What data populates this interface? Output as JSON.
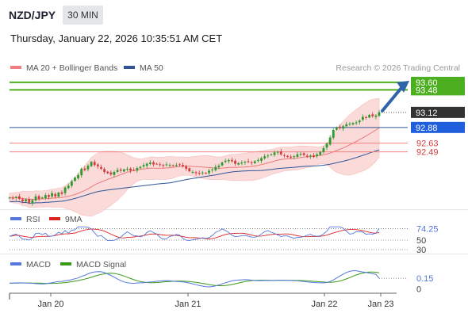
{
  "header": {
    "symbol": "NZD/JPY",
    "timeframe": "30 MIN",
    "datetime": "Thursday, January 22, 2026 10:35:51 AM CET",
    "credit": "Research © 2026 Trading Central"
  },
  "legend": {
    "main": [
      {
        "label": "MA 20 + Bollinger Bands",
        "color": "#f08080"
      },
      {
        "label": "MA 50",
        "color": "#2f5597"
      }
    ],
    "rsi": [
      {
        "label": "RSI",
        "color": "#5577dd"
      },
      {
        "label": "9MA",
        "color": "#dd2222"
      }
    ],
    "macd": [
      {
        "label": "MACD",
        "color": "#5577dd"
      },
      {
        "label": "MACD Signal",
        "color": "#3a9a1a"
      }
    ]
  },
  "colors": {
    "up": "#2e9a2e",
    "down": "#d43c3c",
    "bollinger_fill": "#fbdada",
    "target_line": "#4caf20",
    "resistance_line": "#2f5597",
    "support_line": "#f08080",
    "current_price_bg": "#333333",
    "arrow": "#2f65a8"
  },
  "chart_data": [
    {
      "type": "candlestick",
      "title": "NZD/JPY",
      "x_labels": [
        "Jan 20",
        "Jan 21",
        "Jan 22",
        "Jan 23"
      ],
      "ylim": [
        91.6,
        93.7
      ],
      "close": [
        91.76,
        91.75,
        91.77,
        91.74,
        91.7,
        91.73,
        91.68,
        91.72,
        91.78,
        91.74,
        91.76,
        91.8,
        91.77,
        91.83,
        91.78,
        91.84,
        91.82,
        91.92,
        91.95,
        92.02,
        92.08,
        92.12,
        92.22,
        92.2,
        92.27,
        92.33,
        92.28,
        92.26,
        92.22,
        92.17,
        92.15,
        92.13,
        92.17,
        92.2,
        92.19,
        92.21,
        92.22,
        92.19,
        92.2,
        92.23,
        92.25,
        92.28,
        92.3,
        92.32,
        92.29,
        92.3,
        92.28,
        92.27,
        92.29,
        92.28,
        92.27,
        92.28,
        92.29,
        92.26,
        92.22,
        92.18,
        92.17,
        92.15,
        92.14,
        92.16,
        92.15,
        92.19,
        92.21,
        92.25,
        92.27,
        92.32,
        92.35,
        92.36,
        92.34,
        92.3,
        92.31,
        92.32,
        92.33,
        92.33,
        92.31,
        92.34,
        92.36,
        92.39,
        92.42,
        92.43,
        92.45,
        92.48,
        92.49,
        92.45,
        92.43,
        92.41,
        92.4,
        92.42,
        92.45,
        92.46,
        92.44,
        92.42,
        92.43,
        92.41,
        92.45,
        92.49,
        92.55,
        92.62,
        92.72,
        92.84,
        92.88,
        92.87,
        92.9,
        92.93,
        92.94,
        92.95,
        92.96,
        92.99,
        93.05,
        93.04,
        93.08,
        93.06,
        93.07,
        93.12
      ],
      "ma20_last": 92.6,
      "ma50_last": 92.53,
      "current_price": "93.12",
      "levels": [
        {
          "value": 93.6,
          "label": "93.60",
          "kind": "target"
        },
        {
          "value": 93.48,
          "label": "93.48",
          "kind": "target"
        },
        {
          "value": 92.88,
          "label": "92.88",
          "kind": "pivot"
        },
        {
          "value": 92.63,
          "label": "92.63",
          "kind": "support"
        },
        {
          "value": 92.49,
          "label": "92.49",
          "kind": "support"
        }
      ]
    },
    {
      "type": "line",
      "title": "RSI",
      "ylim": [
        30,
        80
      ],
      "ticks": [
        "74.25",
        "50",
        "30"
      ],
      "series": [
        {
          "name": "RSI",
          "last": 74.25
        },
        {
          "name": "9MA",
          "last": 72
        }
      ]
    },
    {
      "type": "line",
      "title": "MACD",
      "ticks": [
        "0.15",
        "0"
      ],
      "series": [
        {
          "name": "MACD",
          "last": 0.15
        },
        {
          "name": "MACD Signal",
          "last": 0.14
        }
      ]
    }
  ]
}
